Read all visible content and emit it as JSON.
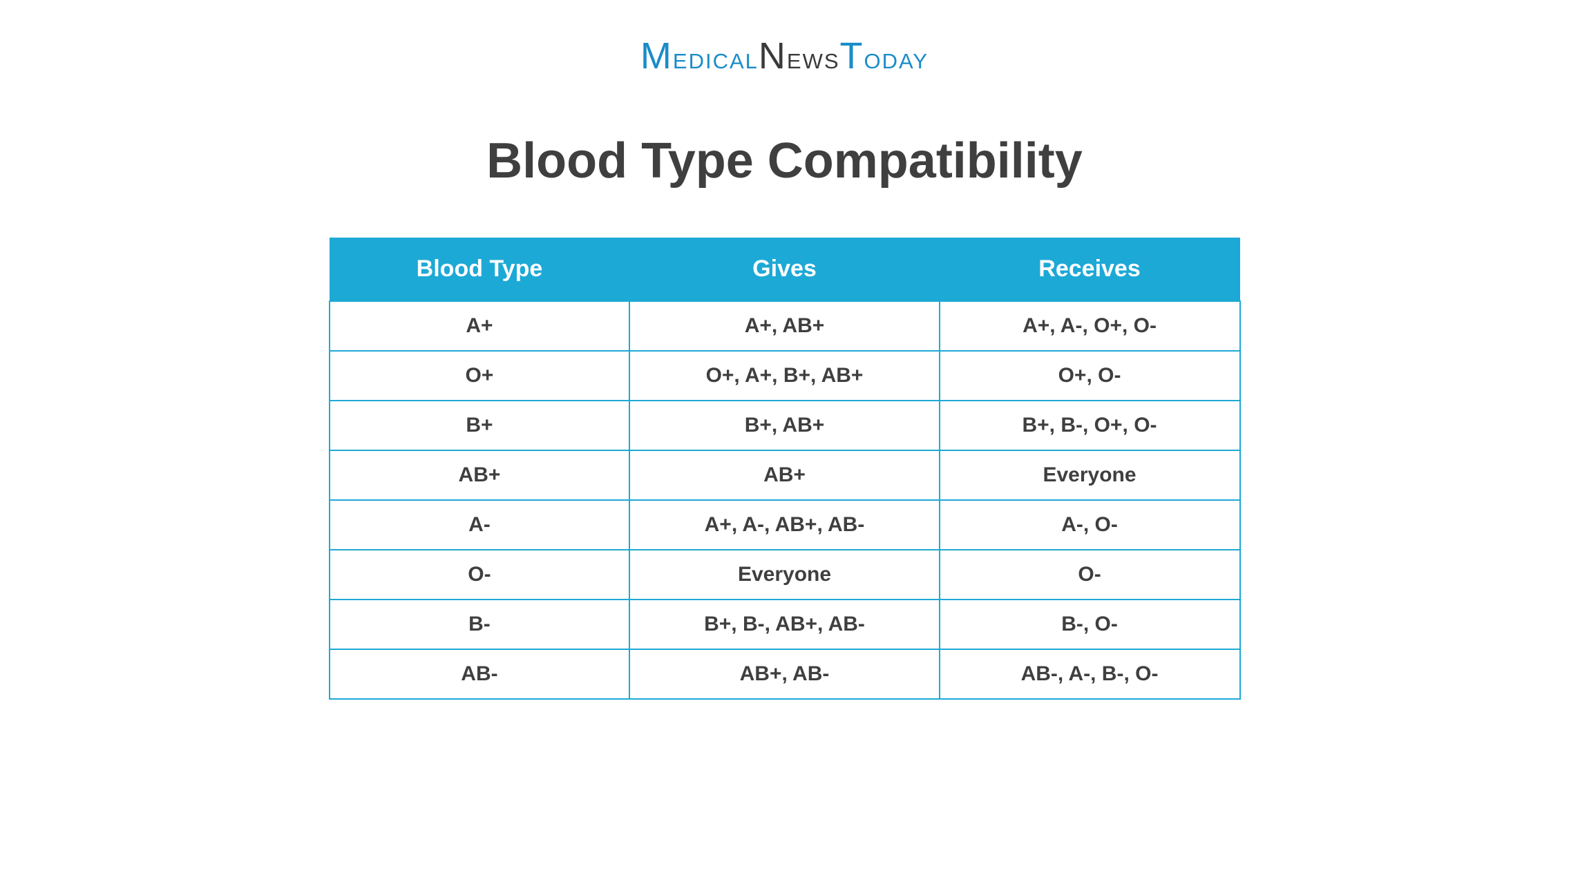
{
  "logo": {
    "word1": "Medical",
    "word2": "News",
    "word3": "Today"
  },
  "title": "Blood Type Compatibility",
  "table": {
    "type": "table",
    "header_bg": "#1da9d6",
    "header_fg": "#ffffff",
    "border_color": "#1da9d6",
    "cell_fg": "#3f3f3f",
    "cell_bg": "#ffffff",
    "header_fontsize": 34,
    "cell_fontsize": 30,
    "columns": [
      "Blood Type",
      "Gives",
      "Receives"
    ],
    "rows": [
      [
        "A+",
        "A+, AB+",
        "A+, A-, O+, O-"
      ],
      [
        "O+",
        "O+, A+, B+, AB+",
        "O+, O-"
      ],
      [
        "B+",
        "B+, AB+",
        "B+, B-, O+, O-"
      ],
      [
        "AB+",
        "AB+",
        "Everyone"
      ],
      [
        "A-",
        "A+, A-, AB+, AB-",
        "A-, O-"
      ],
      [
        "O-",
        "Everyone",
        "O-"
      ],
      [
        "B-",
        "B+, B-, AB+, AB-",
        "B-, O-"
      ],
      [
        "AB-",
        "AB+, AB-",
        "AB-, A-, B-, O-"
      ]
    ]
  },
  "colors": {
    "brand_blue": "#1a8cc9",
    "brand_dark": "#3a3a3a",
    "title_color": "#3f3f3f",
    "background": "#ffffff"
  }
}
